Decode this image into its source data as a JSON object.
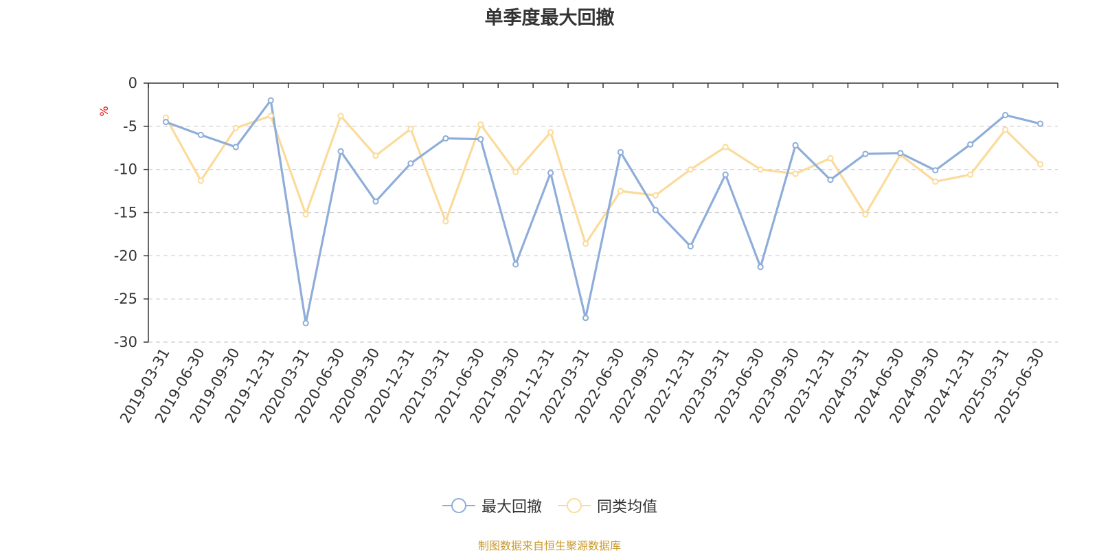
{
  "chart_data": {
    "type": "line",
    "title": "单季度最大回撤",
    "ylabel": "%",
    "ylim": [
      -30,
      0
    ],
    "yticks": [
      0,
      -5,
      -10,
      -15,
      -20,
      -25,
      -30
    ],
    "grid": true,
    "legend_position": "bottom",
    "categories": [
      "2019-03-31",
      "2019-06-30",
      "2019-09-30",
      "2019-12-31",
      "2020-03-31",
      "2020-06-30",
      "2020-09-30",
      "2020-12-31",
      "2021-03-31",
      "2021-06-30",
      "2021-09-30",
      "2021-12-31",
      "2022-03-31",
      "2022-06-30",
      "2022-09-30",
      "2022-12-31",
      "2023-03-31",
      "2023-06-30",
      "2023-09-30",
      "2023-12-31",
      "2024-03-31",
      "2024-06-30",
      "2024-09-30",
      "2024-12-31",
      "2025-03-31",
      "2025-06-30"
    ],
    "series": [
      {
        "name": "最大回撤",
        "color": "#8eadd9",
        "values": [
          -4.5,
          -6.0,
          -7.4,
          -2.0,
          -27.8,
          -7.9,
          -13.7,
          -9.3,
          -6.4,
          -6.5,
          -21.0,
          -10.4,
          -27.2,
          -8.0,
          -14.7,
          -18.9,
          -10.6,
          -21.3,
          -7.2,
          -11.2,
          -8.2,
          -8.1,
          -10.1,
          -7.1,
          -3.7,
          -4.7
        ]
      },
      {
        "name": "同类均值",
        "color": "#fbdb9a",
        "values": [
          -4.0,
          -11.3,
          -5.2,
          -3.8,
          -15.2,
          -3.8,
          -8.4,
          -5.3,
          -16.0,
          -4.8,
          -10.3,
          -5.7,
          -18.6,
          -12.5,
          -13.0,
          -10.0,
          -7.4,
          -10.0,
          -10.5,
          -8.7,
          -15.2,
          -8.3,
          -11.4,
          -10.6,
          -5.4,
          -9.4
        ]
      }
    ]
  },
  "source_note": "制图数据来自恒生聚源数据库"
}
